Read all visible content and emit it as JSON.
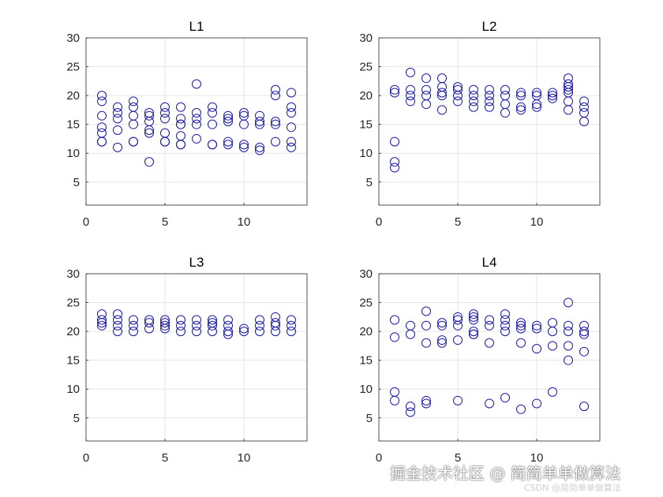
{
  "style": {
    "marker_color": "#1a1aa6",
    "grid_color": "#e6e6e6",
    "axis_color": "#262626"
  },
  "watermark": {
    "main": "掘金技术社区 @ 简简单单做算法",
    "sub": "CSDN @简简单单做算法"
  },
  "chart_data": [
    {
      "type": "scatter",
      "title": "L1",
      "marker": "circle",
      "xlim": [
        0,
        14
      ],
      "ylim": [
        1,
        30
      ],
      "xticks": [
        0,
        5,
        10
      ],
      "yticks": [
        5,
        10,
        15,
        20,
        25,
        30
      ],
      "grid": true,
      "x": [
        1,
        1,
        1,
        1,
        1,
        1,
        1,
        2,
        2,
        2,
        2,
        2,
        3,
        3,
        3,
        3,
        3,
        3,
        4,
        4,
        4,
        4,
        4,
        4,
        5,
        5,
        5,
        5,
        5,
        5,
        6,
        6,
        6,
        6,
        6,
        6,
        6,
        7,
        7,
        7,
        7,
        7,
        8,
        8,
        8,
        8,
        8,
        9,
        9,
        9,
        9,
        9,
        10,
        10,
        10,
        10,
        10,
        11,
        11,
        11,
        11,
        11,
        12,
        12,
        12,
        12,
        12,
        13,
        13,
        13,
        13,
        13,
        13
      ],
      "y": [
        20,
        19,
        16.5,
        14.5,
        13.5,
        12,
        12,
        18,
        17,
        16,
        14,
        11,
        19,
        18,
        16.5,
        15,
        12,
        12,
        17,
        16.5,
        15.5,
        14,
        13.5,
        8.5,
        18,
        17,
        16,
        13.5,
        12,
        12,
        18,
        16,
        15,
        13,
        11.5,
        11.5,
        15,
        22,
        17,
        16,
        15,
        12.5,
        18,
        17,
        15,
        11.5,
        11.5,
        16.5,
        16,
        15.5,
        12,
        11.5,
        17,
        16.5,
        15,
        11.5,
        11,
        16.5,
        15.5,
        15,
        11,
        10.5,
        21,
        20,
        15.5,
        15,
        12,
        20.5,
        18,
        17,
        14.5,
        12,
        11
      ]
    },
    {
      "type": "scatter",
      "title": "L2",
      "marker": "circle",
      "xlim": [
        0,
        14
      ],
      "ylim": [
        1,
        30
      ],
      "xticks": [
        0,
        5,
        10
      ],
      "yticks": [
        5,
        10,
        15,
        20,
        25,
        30
      ],
      "grid": true,
      "x": [
        1,
        1,
        1,
        1,
        1,
        2,
        2,
        2,
        2,
        3,
        3,
        3,
        3,
        4,
        4,
        4,
        4,
        4,
        5,
        5,
        5,
        5,
        6,
        6,
        6,
        6,
        7,
        7,
        7,
        7,
        8,
        8,
        8,
        8,
        9,
        9,
        9,
        9,
        10,
        10,
        10,
        10,
        11,
        11,
        11,
        12,
        12,
        12,
        12,
        12,
        12,
        12,
        13,
        13,
        13,
        13
      ],
      "y": [
        21,
        20.5,
        12,
        8.5,
        7.5,
        24,
        21,
        20,
        19,
        23,
        21,
        20,
        18.5,
        23,
        21.5,
        20.5,
        20,
        17.5,
        21.5,
        21,
        20,
        19,
        21,
        20,
        19,
        18,
        21,
        20,
        19,
        18,
        21,
        20,
        18.5,
        17,
        20.5,
        20,
        18,
        17.5,
        20.5,
        20,
        18.5,
        18,
        20.5,
        20,
        19.5,
        23,
        22,
        21.5,
        21,
        20.5,
        19,
        17.5,
        19,
        18,
        17,
        15.5
      ]
    },
    {
      "type": "scatter",
      "title": "L3",
      "marker": "circle",
      "xlim": [
        0,
        14
      ],
      "ylim": [
        1,
        30
      ],
      "xticks": [
        0,
        5,
        10
      ],
      "yticks": [
        5,
        10,
        15,
        20,
        25,
        30
      ],
      "grid": true,
      "x": [
        1,
        1,
        1,
        1,
        2,
        2,
        2,
        2,
        3,
        3,
        3,
        4,
        4,
        4,
        5,
        5,
        5,
        5,
        6,
        6,
        6,
        7,
        7,
        7,
        8,
        8,
        8,
        8,
        9,
        9,
        9,
        9,
        10,
        10,
        11,
        11,
        11,
        12,
        12,
        12,
        12,
        13,
        13,
        13
      ],
      "y": [
        23,
        22,
        21.5,
        21,
        23,
        22,
        21,
        20,
        22,
        21,
        20,
        22,
        21.5,
        20.5,
        22,
        21.5,
        21,
        20.5,
        22,
        21,
        20,
        22,
        21,
        20,
        22,
        21.5,
        21,
        20,
        22,
        21,
        20,
        19.5,
        20.5,
        20,
        22,
        21,
        20,
        22.5,
        21.5,
        21,
        20,
        22,
        21,
        20
      ]
    },
    {
      "type": "scatter",
      "title": "L4",
      "marker": "circle",
      "xlim": [
        0,
        14
      ],
      "ylim": [
        1,
        30
      ],
      "xticks": [
        0,
        5,
        10
      ],
      "yticks": [
        5,
        10,
        15,
        20,
        25,
        30
      ],
      "grid": true,
      "x": [
        1,
        1,
        1,
        1,
        2,
        2,
        2,
        2,
        3,
        3,
        3,
        3,
        3,
        4,
        4,
        4,
        4,
        5,
        5,
        5,
        5,
        5,
        6,
        6,
        6,
        6,
        6,
        6,
        7,
        7,
        7,
        7,
        8,
        8,
        8,
        8,
        8,
        9,
        9,
        9,
        9,
        9,
        10,
        10,
        10,
        10,
        11,
        11,
        11,
        11,
        12,
        12,
        12,
        12,
        12,
        13,
        13,
        13,
        13,
        13
      ],
      "y": [
        22,
        19,
        9.5,
        8,
        21,
        19.5,
        7,
        6,
        23.5,
        21,
        18,
        8,
        7.5,
        21.5,
        21,
        18.5,
        18,
        22.5,
        22,
        21,
        18.5,
        8,
        23,
        22.5,
        22,
        20,
        19.5,
        19.5,
        22,
        21,
        18,
        7.5,
        23,
        22,
        21,
        20,
        8.5,
        21.5,
        21,
        20.5,
        18,
        6.5,
        21,
        20.5,
        17,
        7.5,
        21.5,
        20,
        17.5,
        9.5,
        25,
        21,
        20,
        17.5,
        15,
        21,
        20,
        19.5,
        16.5,
        7
      ]
    }
  ]
}
